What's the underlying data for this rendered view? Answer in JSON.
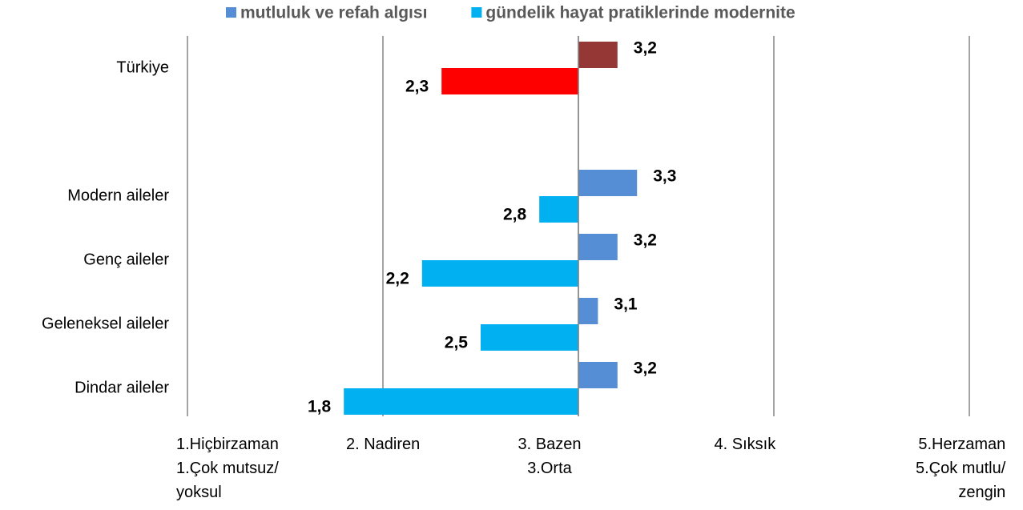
{
  "chart_data": {
    "type": "hbar_diverging",
    "categories": [
      "Türkiye",
      null,
      "Modern aileler",
      "Genç aileler",
      "Geleneksel aileler",
      "Dindar aileler"
    ],
    "baseline": 3,
    "series": [
      {
        "name": "mutluluk ve refah algısı",
        "color": "#558ed5",
        "colors": [
          "#953735",
          null,
          "#558ed5",
          "#558ed5",
          "#558ed5",
          "#558ed5"
        ],
        "values": [
          3.2,
          null,
          3.3,
          3.2,
          3.1,
          3.2
        ],
        "value_labels": [
          "3,2",
          null,
          "3,3",
          "3,2",
          "3,1",
          "3,2"
        ]
      },
      {
        "name": "gündelik hayat pratiklerinde modernite",
        "color": "#00b0f0",
        "colors": [
          "#ff0000",
          null,
          "#00b0f0",
          "#00b0f0",
          "#00b0f0",
          "#00b0f0"
        ],
        "values": [
          2.3,
          null,
          2.8,
          2.2,
          2.5,
          1.8
        ],
        "value_labels": [
          "2,3",
          null,
          "2,8",
          "2,2",
          "2,5",
          "1,8"
        ]
      }
    ],
    "xlim": [
      1,
      5
    ],
    "xticks": [
      {
        "value": 1,
        "label": "1.Hiçbirzaman\n1.Çok mutsuz/\nyoksul"
      },
      {
        "value": 2,
        "label": "2. Nadiren"
      },
      {
        "value": 3,
        "label": "3. Bazen\n3.Orta"
      },
      {
        "value": 4,
        "label": "4. Sıksık"
      },
      {
        "value": 5,
        "label": "5.Herzaman\n5.Çok mutlu/\nzengin"
      }
    ],
    "grid": true,
    "legend": "top"
  }
}
